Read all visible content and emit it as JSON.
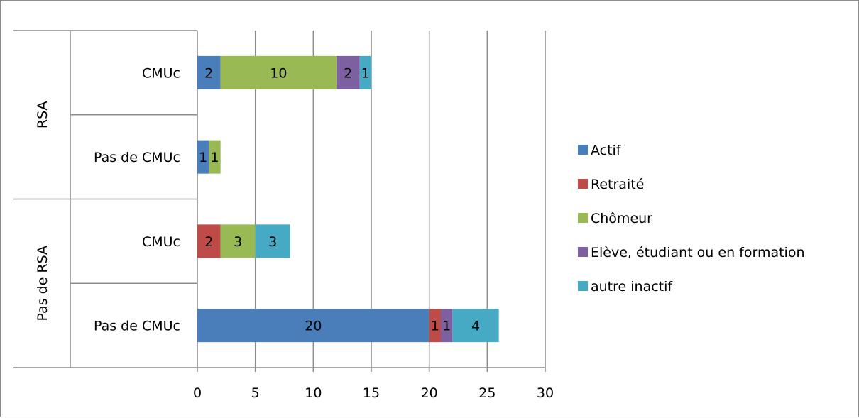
{
  "chart_data": {
    "type": "bar",
    "orientation": "horizontal",
    "stacked": true,
    "groups": [
      {
        "label": "RSA",
        "categories": [
          "CMUc",
          "Pas de CMUc"
        ]
      },
      {
        "label": "Pas de RSA",
        "categories": [
          "CMUc",
          "Pas de CMUc"
        ]
      }
    ],
    "categories": [
      "RSA - CMUc",
      "RSA - Pas de CMUc",
      "Pas de RSA - CMUc",
      "Pas de RSA - Pas de CMUc"
    ],
    "series": [
      {
        "name": "Actif",
        "color": "#4a7ebb",
        "values": [
          2,
          1,
          0,
          20
        ]
      },
      {
        "name": "Retraité",
        "color": "#be4b48",
        "values": [
          0,
          0,
          2,
          1
        ]
      },
      {
        "name": "Chômeur",
        "color": "#98b954",
        "values": [
          10,
          1,
          3,
          0
        ]
      },
      {
        "name": "Elève, étudiant ou en formation",
        "color": "#7d60a0",
        "values": [
          2,
          0,
          0,
          1
        ]
      },
      {
        "name": "autre inactif",
        "color": "#46aac5",
        "values": [
          1,
          0,
          3,
          4
        ]
      }
    ],
    "xlim": [
      0,
      30
    ],
    "xticks": [
      "0",
      "5",
      "10",
      "15",
      "20",
      "25",
      "30"
    ],
    "grid": true,
    "legend_position": "right",
    "title": "",
    "xlabel": "",
    "ylabel": ""
  }
}
